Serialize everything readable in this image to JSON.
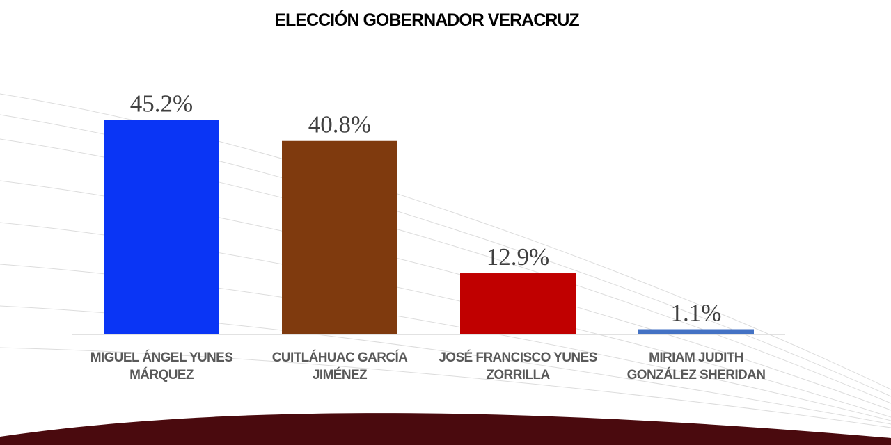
{
  "chart_data": {
    "type": "bar",
    "title": "ELECCIÓN GOBERNADOR VERACRUZ",
    "categories": [
      "MIGUEL ÁNGEL YUNES MÁRQUEZ",
      "CUITLÁHUAC GARCÍA JIMÉNEZ",
      "JOSÉ FRANCISCO YUNES ZORRILLA",
      "MIRIAM JUDITH GONZÁLEZ SHERIDAN"
    ],
    "values": [
      45.2,
      40.8,
      12.9,
      1.1
    ],
    "value_labels": [
      "45.2%",
      "40.8%",
      "12.9%",
      "1.1%"
    ],
    "colors": [
      "#0a35f5",
      "#7f3a0e",
      "#c00000",
      "#4472c4"
    ],
    "ylim": [
      0,
      50
    ]
  }
}
